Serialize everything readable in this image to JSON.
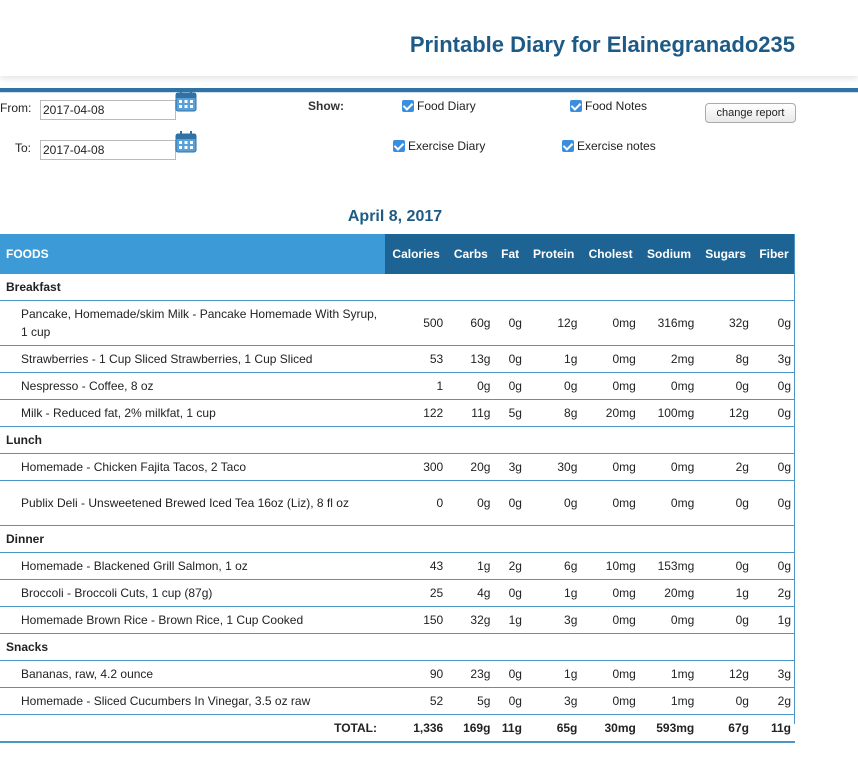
{
  "title": "Printable Diary for Elainegranado235",
  "filters": {
    "from_label": "From:",
    "from_value": "2017-04-08",
    "to_label": "To:",
    "to_value": "2017-04-08",
    "show_label": "Show:",
    "options": [
      {
        "label": "Food Diary",
        "checked": true
      },
      {
        "label": "Food Notes",
        "checked": true
      },
      {
        "label": "Exercise Diary",
        "checked": true
      },
      {
        "label": "Exercise notes",
        "checked": true
      }
    ],
    "change_button": "change report"
  },
  "date_heading": "April 8, 2017",
  "table": {
    "headers": [
      "FOODS",
      "Calories",
      "Carbs",
      "Fat",
      "Protein",
      "Cholest",
      "Sodium",
      "Sugars",
      "Fiber"
    ],
    "meals": [
      {
        "name": "Breakfast",
        "items": [
          {
            "food": "Pancake, Homemade/skim Milk - Pancake Homemade With Syrup, 1 cup",
            "values": [
              "500",
              "60g",
              "0g",
              "12g",
              "0mg",
              "316mg",
              "32g",
              "0g"
            ]
          },
          {
            "food": "Strawberries - 1 Cup Sliced Strawberries, 1 Cup Sliced",
            "values": [
              "53",
              "13g",
              "0g",
              "1g",
              "0mg",
              "2mg",
              "8g",
              "3g"
            ]
          },
          {
            "food": "Nespresso - Coffee, 8 oz",
            "values": [
              "1",
              "0g",
              "0g",
              "0g",
              "0mg",
              "0mg",
              "0g",
              "0g"
            ]
          },
          {
            "food": "Milk - Reduced fat, 2% milkfat, 1 cup",
            "values": [
              "122",
              "11g",
              "5g",
              "8g",
              "20mg",
              "100mg",
              "12g",
              "0g"
            ]
          }
        ]
      },
      {
        "name": "Lunch",
        "items": [
          {
            "food": "Homemade - Chicken Fajita Tacos, 2 Taco",
            "values": [
              "300",
              "20g",
              "3g",
              "30g",
              "0mg",
              "0mg",
              "2g",
              "0g"
            ]
          },
          {
            "food": "Publix Deli - Unsweetened Brewed Iced Tea 16oz (Liz), 8 fl oz",
            "values": [
              "0",
              "0g",
              "0g",
              "0g",
              "0mg",
              "0mg",
              "0g",
              "0g"
            ]
          }
        ]
      },
      {
        "name": "Dinner",
        "items": [
          {
            "food": "Homemade - Blackened Grill Salmon, 1 oz",
            "values": [
              "43",
              "1g",
              "2g",
              "6g",
              "10mg",
              "153mg",
              "0g",
              "0g"
            ]
          },
          {
            "food": "Broccoli - Broccoli Cuts, 1 cup (87g)",
            "values": [
              "25",
              "4g",
              "0g",
              "1g",
              "0mg",
              "20mg",
              "1g",
              "2g"
            ]
          },
          {
            "food": "Homemade Brown Rice - Brown Rice, 1 Cup Cooked",
            "values": [
              "150",
              "32g",
              "1g",
              "3g",
              "0mg",
              "0mg",
              "0g",
              "1g"
            ]
          }
        ]
      },
      {
        "name": "Snacks",
        "items": [
          {
            "food": "Bananas, raw, 4.2 ounce",
            "values": [
              "90",
              "23g",
              "0g",
              "1g",
              "0mg",
              "1mg",
              "12g",
              "3g"
            ]
          },
          {
            "food": "Homemade - Sliced Cucumbers In Vinegar, 3.5 oz raw",
            "values": [
              "52",
              "5g",
              "0g",
              "3g",
              "0mg",
              "1mg",
              "0g",
              "2g"
            ]
          }
        ]
      }
    ],
    "total_label": "TOTAL:",
    "totals": [
      "1,336",
      "169g",
      "11g",
      "65g",
      "30mg",
      "593mg",
      "67g",
      "11g"
    ]
  },
  "colors": {
    "accent": "#1d5b86",
    "header_dark": "#1d6494",
    "header_light": "#3c9bd6",
    "checkbox": "#3a8ee0"
  }
}
